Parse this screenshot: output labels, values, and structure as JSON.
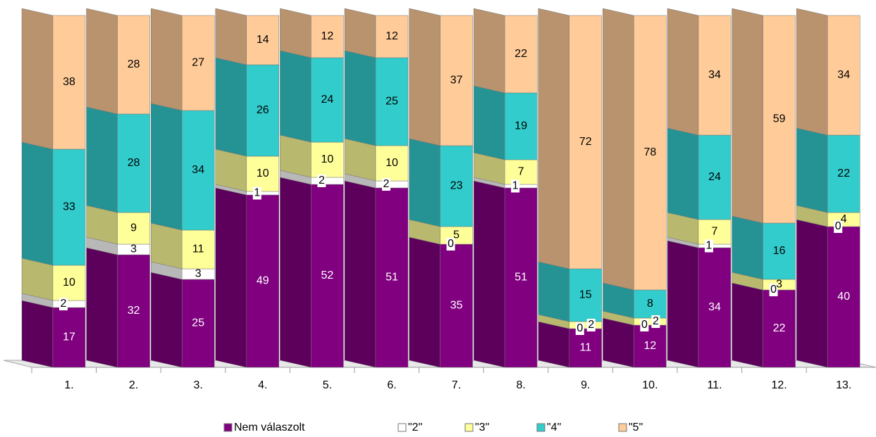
{
  "chart_data": {
    "type": "stacked-bar-3d",
    "categories": [
      "1.",
      "2.",
      "3.",
      "4.",
      "5.",
      "6.",
      "7.",
      "8.",
      "9.",
      "10.",
      "11.",
      "12.",
      "13."
    ],
    "series": [
      {
        "name": "Nem válaszolt",
        "color": "#800080",
        "values": [
          17,
          32,
          25,
          49,
          52,
          51,
          35,
          51,
          11,
          12,
          34,
          22,
          40
        ]
      },
      {
        "name": "\"2\"",
        "color": "#ffffff",
        "values": [
          2,
          3,
          3,
          1,
          2,
          2,
          0,
          1,
          0,
          0,
          1,
          0,
          0
        ]
      },
      {
        "name": "\"3\"",
        "color": "#ffff99",
        "values": [
          10,
          9,
          11,
          10,
          10,
          10,
          5,
          7,
          2,
          2,
          7,
          3,
          4
        ]
      },
      {
        "name": "\"4\"",
        "color": "#33cccc",
        "values": [
          33,
          28,
          34,
          26,
          24,
          25,
          23,
          19,
          15,
          8,
          24,
          16,
          22
        ]
      },
      {
        "name": "\"5\"",
        "color": "#ffcc99",
        "values": [
          38,
          28,
          27,
          14,
          12,
          12,
          37,
          22,
          72,
          78,
          34,
          59,
          34
        ]
      }
    ],
    "legend": "bottom"
  }
}
